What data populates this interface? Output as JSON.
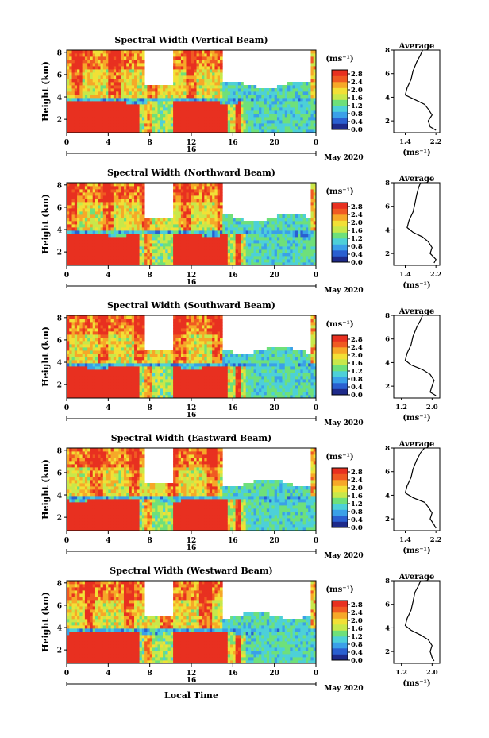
{
  "figure": {
    "xlabel": "Local Time",
    "ylabel": "Height (km)",
    "date_label": "May 2020",
    "day_label": "16",
    "avg_title": "Average",
    "unit_label": "(ms⁻¹)",
    "colormap": [
      "#1e2a8a",
      "#2a5fd0",
      "#3aa0e8",
      "#4dd0d8",
      "#6ee07a",
      "#c8e84a",
      "#f2e036",
      "#f6a828",
      "#f05a22",
      "#e83020"
    ]
  },
  "chart_data": [
    {
      "type": "heatmap",
      "title": "Spectral Width (Vertical Beam)",
      "x_ticks": [
        "0",
        "4",
        "8",
        "12",
        "16",
        "20",
        "0"
      ],
      "xlim": [
        0,
        24
      ],
      "y_ticks": [
        "2",
        "4",
        "6",
        "8"
      ],
      "ylim": [
        0.8,
        8.2
      ],
      "colorbar_ticks": [
        "0.0",
        "0.4",
        "0.8",
        "1.2",
        "1.6",
        "2.0",
        "2.4",
        "2.8"
      ],
      "colorbar_range": [
        0.0,
        3.0
      ],
      "average_profile": {
        "x_ticks": [
          "1.4",
          "2.2"
        ],
        "xlim": [
          1.1,
          2.3
        ],
        "ylim": [
          1,
          8
        ],
        "height_km": [
          1.2,
          1.5,
          2.0,
          2.5,
          3.0,
          3.4,
          3.8,
          4.2,
          4.8,
          5.5,
          6.2,
          7.0,
          7.6,
          8.0
        ],
        "width_ms": [
          2.2,
          2.05,
          2.0,
          2.1,
          2.0,
          1.9,
          1.65,
          1.4,
          1.45,
          1.55,
          1.6,
          1.7,
          1.8,
          1.85
        ]
      }
    },
    {
      "type": "heatmap",
      "title": "Spectral Width (Northward Beam)",
      "x_ticks": [
        "0",
        "4",
        "8",
        "12",
        "16",
        "20",
        "0"
      ],
      "xlim": [
        0,
        24
      ],
      "y_ticks": [
        "2",
        "4",
        "6",
        "8"
      ],
      "ylim": [
        0.8,
        8.2
      ],
      "colorbar_ticks": [
        "0.0",
        "0.4",
        "0.8",
        "1.2",
        "1.6",
        "2.0",
        "2.4",
        "2.8"
      ],
      "colorbar_range": [
        0.0,
        3.0
      ],
      "average_profile": {
        "x_ticks": [
          "1.4",
          "2.2"
        ],
        "xlim": [
          1.1,
          2.3
        ],
        "ylim": [
          1,
          8
        ],
        "height_km": [
          1.2,
          1.5,
          2.0,
          2.5,
          3.0,
          3.4,
          3.8,
          4.2,
          4.8,
          5.5,
          6.2,
          7.0,
          7.6,
          8.0
        ],
        "width_ms": [
          2.15,
          2.2,
          2.05,
          2.1,
          2.0,
          1.85,
          1.6,
          1.45,
          1.5,
          1.6,
          1.65,
          1.7,
          1.75,
          1.8
        ]
      }
    },
    {
      "type": "heatmap",
      "title": "Spectral Width (Southward Beam)",
      "x_ticks": [
        "0",
        "4",
        "8",
        "12",
        "16",
        "20",
        "0"
      ],
      "xlim": [
        0,
        24
      ],
      "y_ticks": [
        "2",
        "4",
        "6",
        "8"
      ],
      "ylim": [
        0.8,
        8.2
      ],
      "colorbar_ticks": [
        "0.0",
        "0.4",
        "0.8",
        "1.2",
        "1.6",
        "2.0",
        "2.4",
        "2.8"
      ],
      "colorbar_range": [
        0.0,
        3.0
      ],
      "average_profile": {
        "x_ticks": [
          "1.2",
          "2.0"
        ],
        "xlim": [
          1.0,
          2.2
        ],
        "ylim": [
          1,
          8
        ],
        "height_km": [
          1.2,
          1.5,
          2.0,
          2.5,
          3.0,
          3.4,
          3.8,
          4.2,
          4.8,
          5.5,
          6.2,
          7.0,
          7.6,
          8.0
        ],
        "width_ms": [
          2.1,
          1.95,
          2.0,
          2.05,
          1.95,
          1.75,
          1.45,
          1.3,
          1.35,
          1.45,
          1.5,
          1.6,
          1.7,
          1.75
        ]
      }
    },
    {
      "type": "heatmap",
      "title": "Spectral Width (Eastward Beam)",
      "x_ticks": [
        "0",
        "4",
        "8",
        "12",
        "16",
        "20",
        "0"
      ],
      "xlim": [
        0,
        24
      ],
      "y_ticks": [
        "2",
        "4",
        "6",
        "8"
      ],
      "ylim": [
        0.8,
        8.2
      ],
      "colorbar_ticks": [
        "0.0",
        "0.4",
        "0.8",
        "1.2",
        "1.6",
        "2.0",
        "2.4",
        "2.8"
      ],
      "colorbar_range": [
        0.0,
        3.0
      ],
      "average_profile": {
        "x_ticks": [
          "1.4",
          "2.2"
        ],
        "xlim": [
          1.1,
          2.3
        ],
        "ylim": [
          1,
          8
        ],
        "height_km": [
          1.2,
          1.5,
          2.0,
          2.5,
          3.0,
          3.4,
          3.8,
          4.2,
          4.8,
          5.5,
          6.2,
          7.0,
          7.6,
          8.0
        ],
        "width_ms": [
          2.2,
          2.15,
          2.05,
          2.1,
          2.0,
          1.9,
          1.6,
          1.4,
          1.45,
          1.55,
          1.6,
          1.7,
          1.8,
          1.9
        ]
      }
    },
    {
      "type": "heatmap",
      "title": "Spectral Width (Westward Beam)",
      "x_ticks": [
        "0",
        "4",
        "8",
        "12",
        "16",
        "20",
        "0"
      ],
      "xlim": [
        0,
        24
      ],
      "y_ticks": [
        "2",
        "4",
        "6",
        "8"
      ],
      "ylim": [
        0.8,
        8.2
      ],
      "colorbar_ticks": [
        "0.0",
        "0.4",
        "0.8",
        "1.2",
        "1.6",
        "2.0",
        "2.4",
        "2.8"
      ],
      "colorbar_range": [
        0.0,
        3.0
      ],
      "average_profile": {
        "x_ticks": [
          "1.2",
          "2.0"
        ],
        "xlim": [
          1.0,
          2.2
        ],
        "ylim": [
          1,
          8
        ],
        "height_km": [
          1.2,
          1.5,
          2.0,
          2.5,
          3.0,
          3.4,
          3.8,
          4.2,
          4.8,
          5.5,
          6.2,
          7.0,
          7.6,
          8.0
        ],
        "width_ms": [
          2.05,
          2.0,
          1.95,
          2.0,
          1.9,
          1.7,
          1.45,
          1.3,
          1.35,
          1.45,
          1.5,
          1.55,
          1.65,
          1.7
        ]
      }
    }
  ]
}
